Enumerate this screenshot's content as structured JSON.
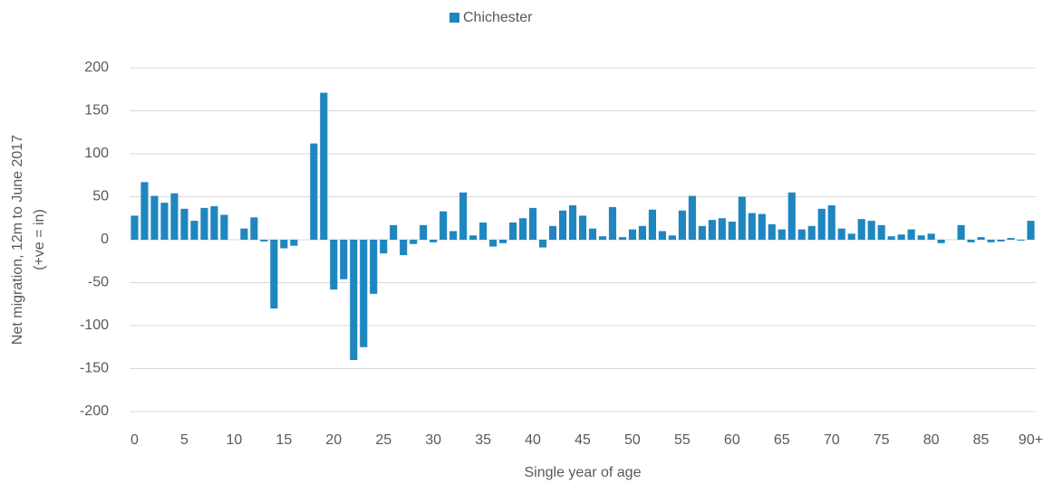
{
  "chart_data": {
    "type": "bar",
    "legend": "Chichester",
    "xlabel": "Single year of age",
    "ylabel": [
      "Net migration, 12m to June 2017",
      "(+ve = in)"
    ],
    "color": "#1f86bf",
    "categories": [
      "0",
      null,
      null,
      null,
      null,
      "5",
      null,
      null,
      null,
      null,
      "10",
      null,
      null,
      null,
      null,
      "15",
      null,
      null,
      null,
      null,
      "20",
      null,
      null,
      null,
      null,
      "25",
      null,
      null,
      null,
      null,
      "30",
      null,
      null,
      null,
      null,
      "35",
      null,
      null,
      null,
      null,
      "40",
      null,
      null,
      null,
      null,
      "45",
      null,
      null,
      null,
      null,
      "50",
      null,
      null,
      null,
      null,
      "55",
      null,
      null,
      null,
      null,
      "60",
      null,
      null,
      null,
      null,
      "65",
      null,
      null,
      null,
      null,
      "70",
      null,
      null,
      null,
      null,
      "75",
      null,
      null,
      null,
      null,
      "80",
      null,
      null,
      null,
      null,
      "85",
      null,
      null,
      null,
      null,
      "90+"
    ],
    "values": [
      28,
      67,
      51,
      43,
      54,
      36,
      22,
      37,
      39,
      29,
      0,
      13,
      26,
      -2,
      -80,
      -10,
      -7,
      0,
      112,
      171,
      -58,
      -46,
      -140,
      -125,
      -63,
      -16,
      17,
      -18,
      -5,
      17,
      -3,
      33,
      10,
      55,
      5,
      20,
      -8,
      -4,
      20,
      25,
      37,
      -9,
      16,
      34,
      40,
      28,
      13,
      4,
      38,
      3,
      12,
      16,
      35,
      10,
      5,
      34,
      51,
      16,
      23,
      25,
      21,
      50,
      31,
      30,
      18,
      12,
      55,
      12,
      16,
      36,
      40,
      13,
      7,
      24,
      22,
      17,
      4,
      6,
      12,
      5,
      7,
      -4,
      0,
      17,
      -3,
      3,
      -3,
      -2,
      2,
      -1,
      22
    ],
    "ylim": [
      -200,
      200
    ],
    "yticks": [
      -200,
      -150,
      -100,
      -50,
      0,
      50,
      100,
      150,
      200
    ],
    "grid": true
  }
}
